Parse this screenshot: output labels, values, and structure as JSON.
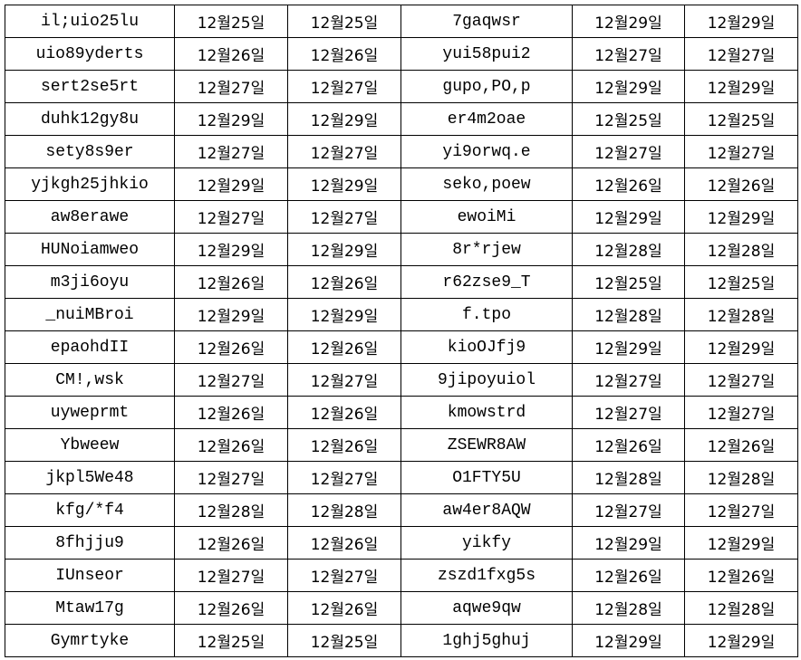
{
  "sheet": {
    "rows": [
      [
        "il;uio25lu",
        "12월25일",
        "12월25일",
        "7gaqwsr",
        "12월29일",
        "12월29일"
      ],
      [
        "uio89yderts",
        "12월26일",
        "12월26일",
        "yui58pui2",
        "12월27일",
        "12월27일"
      ],
      [
        "sert2se5rt",
        "12월27일",
        "12월27일",
        "gupo,PO,p",
        "12월29일",
        "12월29일"
      ],
      [
        "duhk12gy8u",
        "12월29일",
        "12월29일",
        "er4m2oae",
        "12월25일",
        "12월25일"
      ],
      [
        "sety8s9er",
        "12월27일",
        "12월27일",
        "yi9orwq.e",
        "12월27일",
        "12월27일"
      ],
      [
        "yjkgh25jhkio",
        "12월29일",
        "12월29일",
        "seko,poew",
        "12월26일",
        "12월26일"
      ],
      [
        "aw8erawe",
        "12월27일",
        "12월27일",
        "ewoiMi",
        "12월29일",
        "12월29일"
      ],
      [
        "HUNoiamweo",
        "12월29일",
        "12월29일",
        "8r*rjew",
        "12월28일",
        "12월28일"
      ],
      [
        "m3ji6oyu",
        "12월26일",
        "12월26일",
        "r62zse9_T",
        "12월25일",
        "12월25일"
      ],
      [
        "_nuiMBroi",
        "12월29일",
        "12월29일",
        "f.tpo",
        "12월28일",
        "12월28일"
      ],
      [
        "epaohdII",
        "12월26일",
        "12월26일",
        "kioOJfj9",
        "12월29일",
        "12월29일"
      ],
      [
        "CM!,wsk",
        "12월27일",
        "12월27일",
        "9jipoyuiol",
        "12월27일",
        "12월27일"
      ],
      [
        "uyweprmt",
        "12월26일",
        "12월26일",
        "kmowstrd",
        "12월27일",
        "12월27일"
      ],
      [
        "Ybweew",
        "12월26일",
        "12월26일",
        "ZSEWR8AW",
        "12월26일",
        "12월26일"
      ],
      [
        "jkpl5We48",
        "12월27일",
        "12월27일",
        "O1FTY5U",
        "12월28일",
        "12월28일"
      ],
      [
        "kfg/*f4",
        "12월28일",
        "12월28일",
        "aw4er8AQW",
        "12월27일",
        "12월27일"
      ],
      [
        "8fhjju9",
        "12월26일",
        "12월26일",
        "yikfy",
        "12월29일",
        "12월29일"
      ],
      [
        "IUnseor",
        "12월27일",
        "12월27일",
        "zszd1fxg5s",
        "12월26일",
        "12월26일"
      ],
      [
        "Mtaw17g",
        "12월26일",
        "12월26일",
        "aqwe9qw",
        "12월28일",
        "12월28일"
      ],
      [
        "Gymrtyke",
        "12월25일",
        "12월25일",
        "1ghj5ghuj",
        "12월29일",
        "12월29일"
      ]
    ]
  }
}
